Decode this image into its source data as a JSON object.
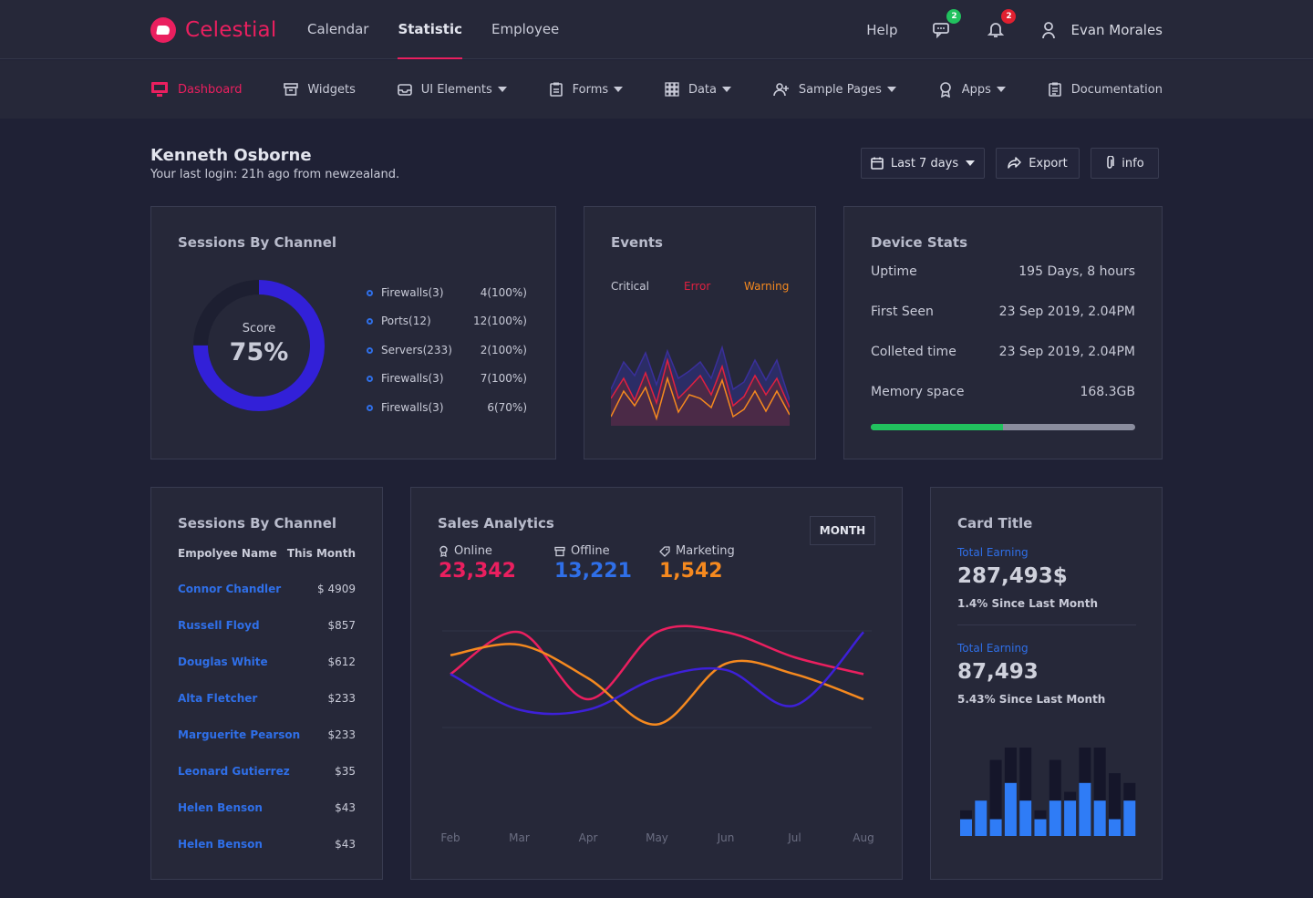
{
  "brand": {
    "name": "Celestial",
    "color": "#ea1f5f"
  },
  "topnav": [
    {
      "label": "Calendar",
      "active": false
    },
    {
      "label": "Statistic",
      "active": true
    },
    {
      "label": "Employee",
      "active": false
    }
  ],
  "topright": {
    "help": "Help",
    "messages_badge": "2",
    "notifications_badge": "2",
    "user_name": "Evan Morales"
  },
  "subnav": [
    {
      "label": "Dashboard",
      "icon": "monitor-icon"
    },
    {
      "label": "Widgets",
      "icon": "archive-icon"
    },
    {
      "label": "UI Elements",
      "icon": "inbox-icon"
    },
    {
      "label": "Forms",
      "icon": "clipboard-icon"
    },
    {
      "label": "Data",
      "icon": "grid-icon"
    },
    {
      "label": "Sample Pages",
      "icon": "user-plus-icon"
    },
    {
      "label": "Apps",
      "icon": "award-icon"
    },
    {
      "label": "Documentation",
      "icon": "document-icon"
    }
  ],
  "greeting": {
    "name": "Kenneth Osborne",
    "subtitle": "Your last login: 21h ago from newzealand."
  },
  "actions": {
    "range": "Last 7 days",
    "export": "Export",
    "info": "info"
  },
  "sessions": {
    "title": "Sessions By Channel",
    "score_label": "Score",
    "score_value": "75%",
    "score_fraction": 0.75,
    "items": [
      {
        "label": "Firewalls(3)",
        "value": "4(100%)"
      },
      {
        "label": "Ports(12)",
        "value": "12(100%)"
      },
      {
        "label": "Servers(233)",
        "value": "2(100%)"
      },
      {
        "label": "Firewalls(3)",
        "value": "7(100%)"
      },
      {
        "label": "Firewalls(3)",
        "value": "6(70%)"
      }
    ]
  },
  "events": {
    "title": "Events",
    "critical": "Critical",
    "error": "Error",
    "warning": "Warning",
    "colors": {
      "critical": "#3a2f7a",
      "error": "#e02040",
      "warning": "#f5891f"
    }
  },
  "device": {
    "title": "Device Stats",
    "rows": [
      {
        "label": "Uptime",
        "value": "195 Days, 8 hours"
      },
      {
        "label": "First Seen",
        "value": "23 Sep 2019, 2.04PM"
      },
      {
        "label": "Colleted time",
        "value": "23 Sep 2019, 2.04PM"
      },
      {
        "label": "Memory space",
        "value": "168.3GB"
      }
    ],
    "memory_fraction": 0.5,
    "bar_color": "#21c15e"
  },
  "employees": {
    "title": "Sessions By Channel",
    "col_name": "Empolyee Name",
    "col_month": "This Month",
    "rows": [
      {
        "name": "Connor Chandler",
        "value": "$ 4909"
      },
      {
        "name": "Russell Floyd",
        "value": "$857"
      },
      {
        "name": "Douglas White",
        "value": "$612"
      },
      {
        "name": "Alta Fletcher",
        "value": "$233"
      },
      {
        "name": "Marguerite Pearson",
        "value": "$233"
      },
      {
        "name": "Leonard Gutierrez",
        "value": "$35"
      },
      {
        "name": "Helen Benson",
        "value": "$43"
      },
      {
        "name": "Helen Benson",
        "value": "$43"
      }
    ]
  },
  "sales": {
    "title": "Sales Analytics",
    "period_button": "MONTH",
    "stats": [
      {
        "label": "Online",
        "value": "23,342",
        "color": "#ea1f5f",
        "icon": "award-icon"
      },
      {
        "label": "Offline",
        "value": "13,221",
        "color": "#2f6fe8",
        "icon": "archive-icon"
      },
      {
        "label": "Marketing",
        "value": "1,542",
        "color": "#f5891f",
        "icon": "tag-icon"
      }
    ]
  },
  "chart_data": {
    "type": "line",
    "categories": [
      "Feb",
      "Mar",
      "Apr",
      "May",
      "Jun",
      "Jul",
      "Aug"
    ],
    "series": [
      {
        "color": "#ea1f5f",
        "values": [
          72,
          92,
          60,
          92,
          92,
          80,
          72
        ]
      },
      {
        "color": "#f5891f",
        "values": [
          81,
          86,
          70,
          48,
          77,
          72,
          60
        ]
      },
      {
        "color": "#3d20d8",
        "values": [
          72,
          55,
          55,
          70,
          74,
          57,
          92
        ]
      }
    ],
    "grid": true
  },
  "card": {
    "title": "Card Title",
    "earn1_label": "Total Earning",
    "earn1_value": "287,493$",
    "earn1_note": "1.4% Since Last Month",
    "earn2_label": "Total Earning",
    "earn2_value": "87,493",
    "earn2_note": "5.43% Since Last Month",
    "bars": [
      {
        "back": 0.29,
        "front": 0.19
      },
      {
        "back": 0.4,
        "front": 0.4
      },
      {
        "back": 0.86,
        "front": 0.19
      },
      {
        "back": 1.0,
        "front": 0.6
      },
      {
        "back": 1.0,
        "front": 0.4
      },
      {
        "back": 0.29,
        "front": 0.19
      },
      {
        "back": 0.86,
        "front": 0.4
      },
      {
        "back": 0.5,
        "front": 0.4
      },
      {
        "back": 1.0,
        "front": 0.6
      },
      {
        "back": 1.0,
        "front": 0.4
      },
      {
        "back": 0.71,
        "front": 0.19
      },
      {
        "back": 0.6,
        "front": 0.4
      }
    ],
    "bar_back_color": "#15162a",
    "bar_front_color": "#2f7cf6"
  }
}
